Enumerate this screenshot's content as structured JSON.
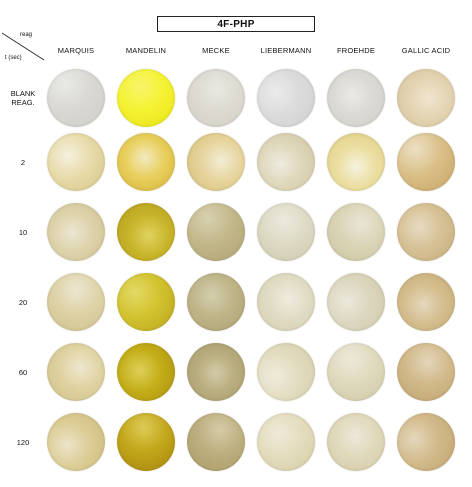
{
  "title": "4F-PHP",
  "corner": {
    "top_label": "reag",
    "bottom_label": "t (sec)"
  },
  "columns": [
    "MARQUIS",
    "MANDELIN",
    "MECKE",
    "LIEBERMANN",
    "FROEHDE",
    "GALLIC ACID"
  ],
  "rows": [
    {
      "label_lines": [
        "BLANK",
        "REAG."
      ],
      "wells": [
        {
          "c1": "#d9d8d3",
          "c2": "#cfcec9",
          "c3": "#e9e9e6"
        },
        {
          "c1": "#f5f233",
          "c2": "#e4e214",
          "c3": "#f6f56a"
        },
        {
          "c1": "#dcdad1",
          "c2": "#d3d0c4",
          "c3": "#e9e8e2"
        },
        {
          "c1": "#dbdbdb",
          "c2": "#d0d0d0",
          "c3": "#ebebeb"
        },
        {
          "c1": "#dbd9d4",
          "c2": "#d0cec8",
          "c3": "#eceae6"
        },
        {
          "c1": "#e3d4b3",
          "c2": "#d9c39a",
          "c3": "#efe6cf"
        }
      ]
    },
    {
      "label_lines": [
        "2"
      ],
      "wells": [
        {
          "c1": "#e7dba9",
          "c2": "#d8c58a",
          "c3": "#f4f0dd"
        },
        {
          "c1": "#e8cf5c",
          "c2": "#d6b23a",
          "c3": "#f3eac0"
        },
        {
          "c1": "#e6d49c",
          "c2": "#d5be78",
          "c3": "#f2ecd6"
        },
        {
          "c1": "#ded7bb",
          "c2": "#cfc59f",
          "c3": "#eeebe0"
        },
        {
          "c1": "#ebdea0",
          "c2": "#dccb80",
          "c3": "#f5f2df"
        },
        {
          "c1": "#d9bf87",
          "c2": "#c9a668",
          "c3": "#ece0c4"
        }
      ]
    },
    {
      "label_lines": [
        "10"
      ],
      "wells": [
        {
          "c1": "#ddd3ab",
          "c2": "#cfc190",
          "c3": "#ebe6d2"
        },
        {
          "c1": "#c7b42a",
          "c2": "#b19a1b",
          "c3": "#dfd35f"
        },
        {
          "c1": "#c2b78a",
          "c2": "#b1a474",
          "c3": "#d8d1b1"
        },
        {
          "c1": "#dddac4",
          "c2": "#cfcbb0",
          "c3": "#ebe9de"
        },
        {
          "c1": "#dad4b6",
          "c2": "#ccc49f",
          "c3": "#e9e5d6"
        },
        {
          "c1": "#d6c196",
          "c2": "#c6ad7c",
          "c3": "#e6dbc1"
        }
      ]
    },
    {
      "label_lines": [
        "20"
      ],
      "wells": [
        {
          "c1": "#ded3a8",
          "c2": "#d0c28d",
          "c3": "#ebe6d0"
        },
        {
          "c1": "#d1c22e",
          "c2": "#baa41c",
          "c3": "#e3da66"
        },
        {
          "c1": "#beb488",
          "c2": "#ada172",
          "c3": "#d4ceaf"
        },
        {
          "c1": "#e0dcc4",
          "c2": "#d3cdae",
          "c3": "#eeebdf"
        },
        {
          "c1": "#dcd7bf",
          "c2": "#cfc8aa",
          "c3": "#ebe8dc"
        },
        {
          "c1": "#d4bd8e",
          "c2": "#c4a873",
          "c3": "#e5d9bd"
        }
      ]
    },
    {
      "label_lines": [
        "60"
      ],
      "wells": [
        {
          "c1": "#dfd2a1",
          "c2": "#d0c086",
          "c3": "#ede7ce"
        },
        {
          "c1": "#c3ae18",
          "c2": "#a9900f",
          "c3": "#ddd05a"
        },
        {
          "c1": "#b9ae80",
          "c2": "#a8996a",
          "c3": "#d2cba9"
        },
        {
          "c1": "#e2dcc0",
          "c2": "#d4cca8",
          "c3": "#efebdc"
        },
        {
          "c1": "#dfd9bd",
          "c2": "#d1c9a6",
          "c3": "#ece9da"
        },
        {
          "c1": "#d1b98a",
          "c2": "#c0a36f",
          "c3": "#e3d6ba"
        }
      ]
    },
    {
      "label_lines": [
        "120"
      ],
      "wells": [
        {
          "c1": "#dccd96",
          "c2": "#ccba7a",
          "c3": "#ebe4c8"
        },
        {
          "c1": "#c2a61a",
          "c2": "#a88610",
          "c3": "#dccb55"
        },
        {
          "c1": "#bcae7e",
          "c2": "#ab9a68",
          "c3": "#d4cba8"
        },
        {
          "c1": "#e3dcbd",
          "c2": "#d5cca4",
          "c3": "#efeada"
        },
        {
          "c1": "#e0d9bc",
          "c2": "#d2c9a4",
          "c3": "#ece8d9"
        },
        {
          "c1": "#d2ba8b",
          "c2": "#c1a46f",
          "c3": "#e3d7bb"
        }
      ]
    }
  ]
}
